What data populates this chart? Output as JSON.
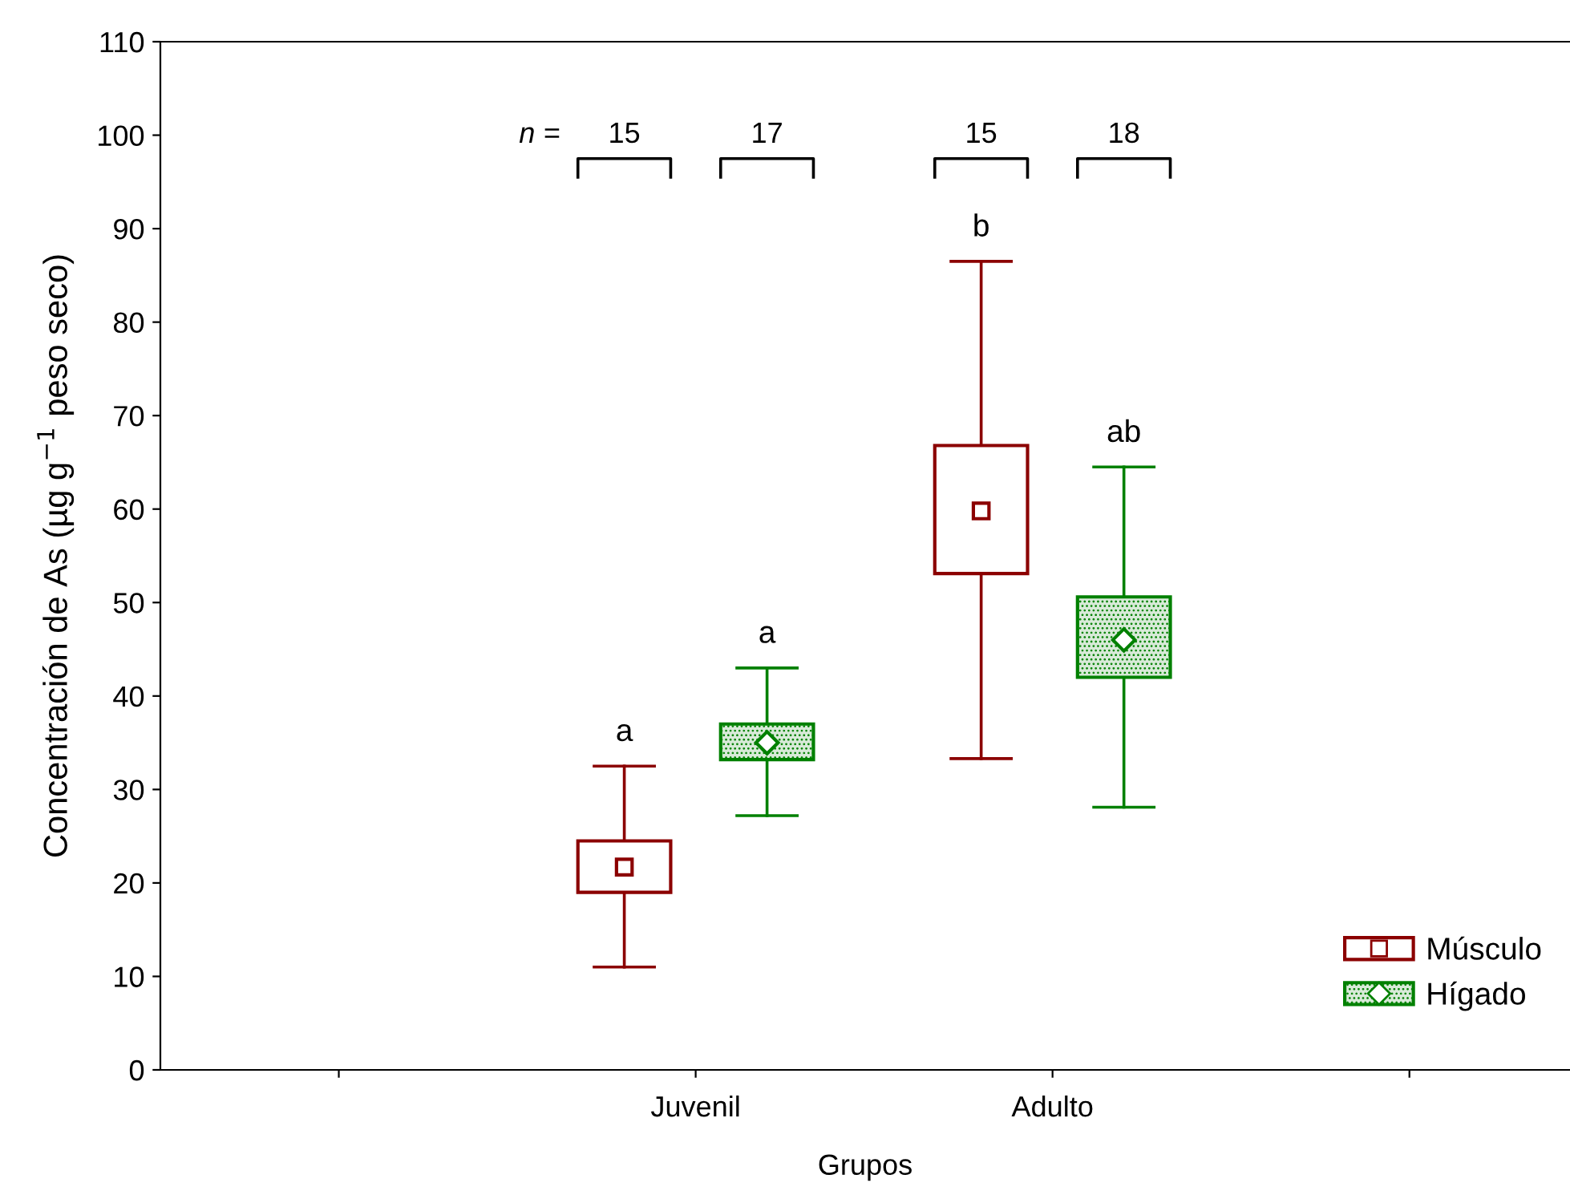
{
  "chart_data": {
    "type": "box",
    "xlabel": "Grupos",
    "ylabel": "Concentración de As (µg g$^{−1}$ peso seco)",
    "categories": [
      null,
      "Juvenil",
      "Adulto",
      null
    ],
    "ylim": [
      0,
      110
    ],
    "yticks": [
      0,
      10,
      20,
      30,
      40,
      50,
      60,
      70,
      80,
      90,
      100,
      110
    ],
    "grid": false,
    "legend": "bottom right",
    "series": [
      {
        "name": "Músculo",
        "color": "#8b0000",
        "marker": "square",
        "boxes": [
          null,
          {
            "low": 11,
            "q1": 19,
            "median": 21.7,
            "q3": 24.5,
            "high": 32.5
          },
          {
            "low": 33.3,
            "q1": 53.1,
            "median": 59.8,
            "q3": 66.8,
            "high": 86.5
          },
          null
        ]
      },
      {
        "name": "Hígado",
        "color": "#008000",
        "marker": "diamond",
        "boxes": [
          null,
          {
            "low": 27.2,
            "q1": 33.2,
            "median": 35,
            "q3": 37,
            "high": 43
          },
          {
            "low": 28.1,
            "q1": 42,
            "median": 46,
            "q3": 50.6,
            "high": 64.5
          },
          null
        ]
      }
    ],
    "annotations": [
      "n =",
      "15",
      "17",
      "15",
      "18",
      "a",
      "a",
      "b",
      "ab"
    ]
  }
}
